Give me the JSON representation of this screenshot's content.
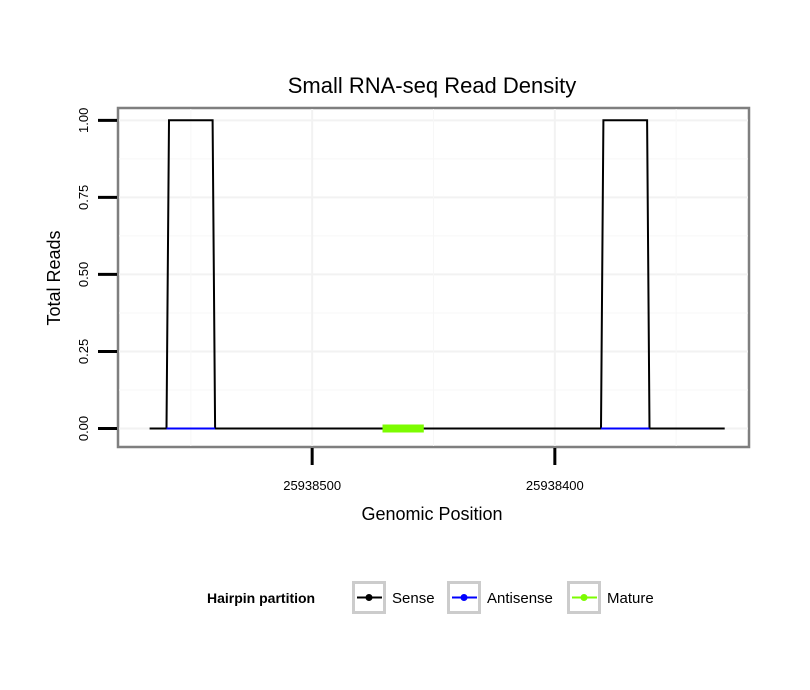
{
  "chart_data": {
    "type": "line",
    "title": "Small RNA-seq Read Density",
    "xlabel": "Genomic Position",
    "ylabel": "Total Reads",
    "x_reversed": true,
    "xlim": [
      25938580,
      25938320
    ],
    "ylim": [
      -0.06,
      1.04
    ],
    "x_ticks": [
      25938500,
      25938400
    ],
    "x_tick_labels": [
      "25938500",
      "25938400"
    ],
    "y_ticks": [
      0,
      0.25,
      0.5,
      0.75,
      1.0
    ],
    "y_tick_labels": [
      "0.00",
      "0.25",
      "0.50",
      "0.75",
      "1.00"
    ],
    "grid": true,
    "series": [
      {
        "name": "Sense",
        "color": "#000000",
        "x": [
          25938567,
          25938560,
          25938559,
          25938541,
          25938540,
          25938381,
          25938380,
          25938362,
          25938361,
          25938330
        ],
        "y": [
          0,
          0,
          1,
          1,
          0,
          0,
          1,
          1,
          0,
          0
        ]
      },
      {
        "name": "Antisense",
        "color": "#0000ff",
        "x": [
          25938560,
          25938540,
          25938381,
          25938361
        ],
        "y": [
          0,
          0,
          0,
          0
        ],
        "segments": [
          [
            0,
            1
          ],
          [
            2,
            3
          ]
        ]
      },
      {
        "name": "Mature",
        "color": "#7cfc00",
        "x": [
          25938471,
          25938454
        ],
        "y": [
          0,
          0
        ],
        "thick": true
      }
    ],
    "legend": {
      "title": "Hairpin partition",
      "position": "bottom",
      "items": [
        {
          "label": "Sense",
          "color": "#000000"
        },
        {
          "label": "Antisense",
          "color": "#0000ff"
        },
        {
          "label": "Mature",
          "color": "#7cfc00"
        }
      ]
    }
  }
}
